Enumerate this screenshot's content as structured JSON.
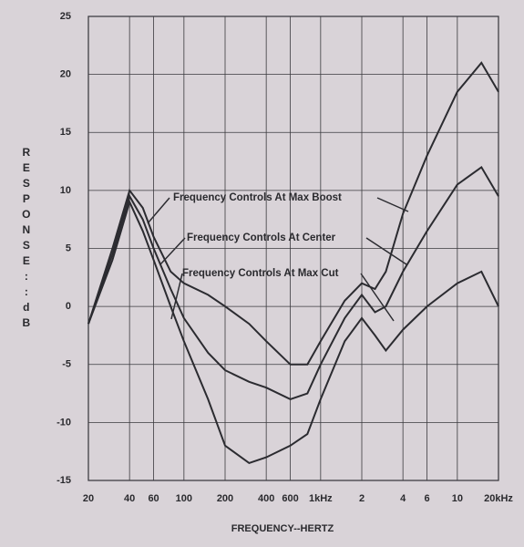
{
  "chart_data": {
    "type": "line",
    "x_label": "FREQUENCY--HERTZ",
    "y_label": "RESPONSE::dB",
    "x": [
      20,
      30,
      40,
      50,
      60,
      80,
      100,
      150,
      200,
      300,
      400,
      600,
      800,
      1000,
      1500,
      2000,
      2500,
      3000,
      4000,
      6000,
      10000,
      15000,
      20000
    ],
    "series": [
      {
        "name": "Frequency Controls At Max Boost",
        "color": "#2b2b30",
        "values": [
          -1.5,
          5,
          10,
          8.5,
          6,
          3,
          2,
          1,
          0,
          -1.5,
          -3,
          -5,
          -5,
          -3,
          0.5,
          2,
          1.5,
          3,
          8,
          13,
          18.5,
          21,
          18.5
        ]
      },
      {
        "name": "Frequency Controls At Center",
        "color": "#2b2b30",
        "values": [
          -1.5,
          4.5,
          9.5,
          7.5,
          5,
          1.5,
          -1,
          -4,
          -5.5,
          -6.5,
          -7,
          -8,
          -7.5,
          -5,
          -1,
          1,
          -0.5,
          0,
          3,
          6.5,
          10.5,
          12,
          9.5
        ]
      },
      {
        "name": "Frequency Controls At Max Cut",
        "color": "#2b2b30",
        "values": [
          -1.5,
          4,
          9,
          6.5,
          4,
          0,
          -3,
          -8,
          -12,
          -13.5,
          -13,
          -12,
          -11,
          -8,
          -3,
          -1,
          -2.5,
          -3.8,
          -2,
          0,
          2,
          3,
          0
        ]
      }
    ],
    "xscale": "log",
    "xlim": [
      20,
      20000
    ],
    "xticks": [
      20,
      40,
      60,
      100,
      200,
      400,
      600,
      {
        "value": 1000,
        "label": "1kHz"
      },
      {
        "value": 2000,
        "label": "2"
      },
      {
        "value": 4000,
        "label": "4"
      },
      {
        "value": 6000,
        "label": "6"
      },
      {
        "value": 10000,
        "label": "10"
      },
      {
        "value": 20000,
        "label": "20kHz"
      }
    ],
    "ylim": [
      -15,
      25
    ],
    "yticks": [
      -15,
      -10,
      -5,
      0,
      5,
      10,
      15,
      20,
      25
    ],
    "grid": true
  }
}
